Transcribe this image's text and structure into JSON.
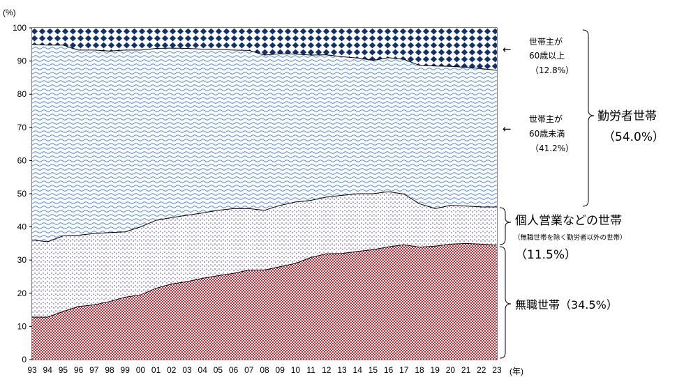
{
  "chart_data": {
    "type": "area",
    "stacked": true,
    "y_unit_label": "(%)",
    "x_unit_label": "(年)",
    "ylim": [
      0,
      100
    ],
    "y_ticks": [
      0,
      10,
      20,
      30,
      40,
      50,
      60,
      70,
      80,
      90,
      100
    ],
    "x": [
      "93",
      "94",
      "95",
      "96",
      "97",
      "98",
      "99",
      "00",
      "01",
      "02",
      "03",
      "04",
      "05",
      "06",
      "07",
      "08",
      "09",
      "10",
      "11",
      "12",
      "13",
      "14",
      "15",
      "16",
      "17",
      "18",
      "19",
      "20",
      "21",
      "22",
      "23"
    ],
    "series": [
      {
        "name": "無職世帯",
        "color": "#e8202a",
        "values": [
          12.8,
          12.8,
          14.5,
          16.0,
          16.5,
          17.5,
          18.8,
          19.5,
          21.5,
          22.8,
          23.5,
          24.5,
          25.3,
          26.0,
          27.0,
          27.0,
          28.0,
          29.0,
          30.8,
          31.9,
          32.0,
          32.6,
          33.1,
          34.0,
          34.6,
          33.9,
          34.2,
          34.8,
          35.0,
          34.8,
          34.5
        ]
      },
      {
        "name": "個人営業などの世帯",
        "color": "#7b6fb5",
        "values": [
          23.3,
          22.7,
          22.8,
          21.5,
          21.5,
          20.8,
          19.7,
          20.5,
          20.5,
          20.0,
          20.0,
          19.7,
          19.7,
          19.5,
          18.5,
          18.0,
          18.5,
          18.5,
          17.2,
          17.1,
          17.5,
          17.4,
          16.9,
          16.6,
          15.3,
          13.1,
          11.3,
          11.7,
          11.3,
          11.2,
          11.5
        ]
      },
      {
        "name": "世帯主が60歳未満",
        "color": "#4a84d8",
        "values": [
          58.9,
          59.3,
          57.5,
          55.8,
          55.3,
          54.7,
          54.8,
          53.3,
          51.8,
          51.1,
          50.3,
          49.4,
          48.5,
          47.8,
          47.7,
          46.8,
          45.7,
          44.6,
          43.8,
          42.9,
          41.8,
          40.9,
          40.2,
          40.4,
          40.6,
          41.7,
          43.0,
          41.9,
          41.8,
          41.7,
          41.2
        ]
      },
      {
        "name": "世帯主が60歳以上",
        "color": "#10306e",
        "values": [
          5.0,
          5.2,
          5.2,
          6.7,
          6.7,
          7.0,
          6.7,
          6.7,
          6.2,
          6.1,
          6.2,
          6.4,
          6.5,
          6.7,
          6.8,
          8.2,
          7.8,
          7.9,
          8.2,
          8.1,
          8.7,
          9.1,
          9.8,
          9.0,
          9.5,
          11.3,
          11.5,
          11.6,
          11.9,
          12.3,
          12.8
        ]
      }
    ]
  },
  "annotations": {
    "sixty_plus": {
      "line1": "世帯主が",
      "line2": "60歳以上",
      "line3": "（12.8%）",
      "arrow": "←"
    },
    "under_sixty": {
      "line1": "世帯主が",
      "line2": "60歳未満",
      "line3": "（41.2%）",
      "arrow": "←"
    },
    "workers": {
      "title": "勤労者世帯",
      "pct": "（54.0%）"
    },
    "self_employed": {
      "title": "個人営業などの世帯",
      "note": "（無職世帯を除く勤労者以外の世帯）",
      "pct": "（11.5%）"
    },
    "unemployed": {
      "title": "無職世帯（34.5%）"
    }
  }
}
